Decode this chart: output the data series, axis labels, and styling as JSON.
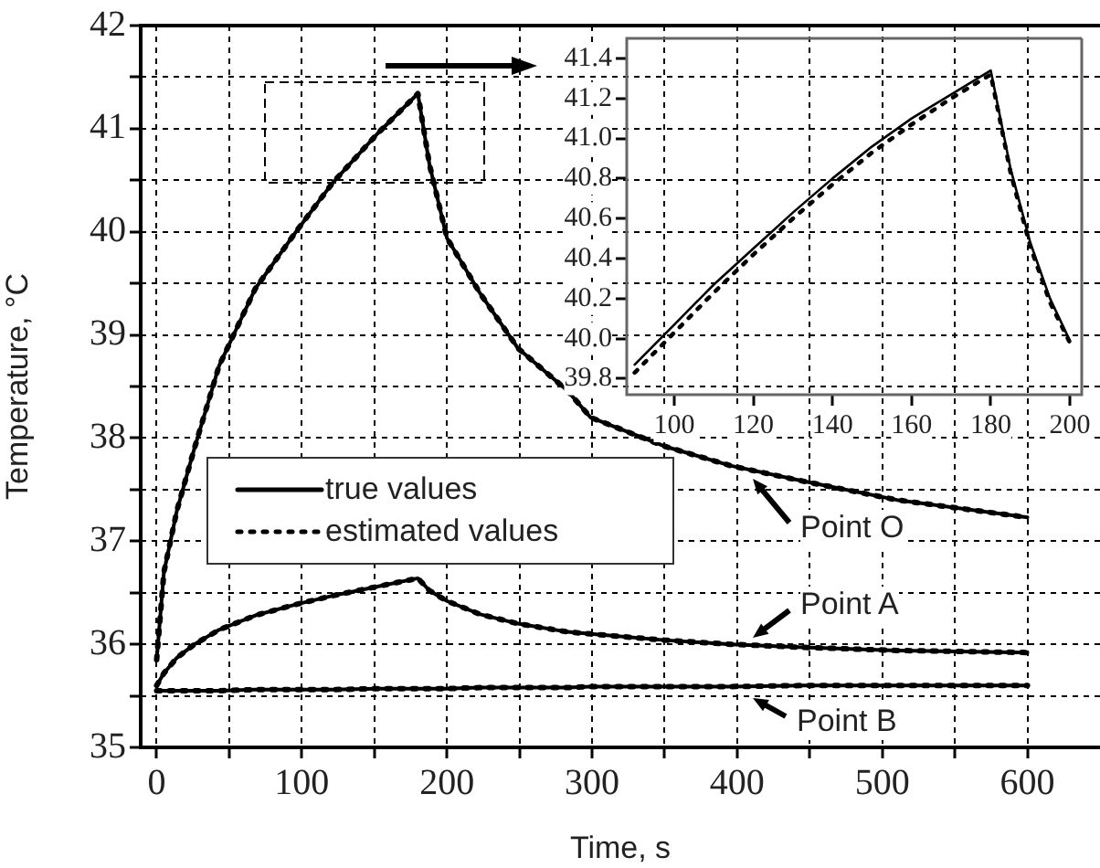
{
  "chart_data": [
    {
      "type": "line",
      "xlabel": "Time, s",
      "ylabel": "Temperature, °C",
      "xlim": [
        -11,
        650
      ],
      "ylim": [
        35,
        42
      ],
      "xticks": [
        0,
        {
          "value": 50,
          "label": null
        },
        100,
        {
          "value": 150,
          "label": null
        },
        200,
        {
          "value": 250,
          "label": null
        },
        300,
        {
          "value": 350,
          "label": null
        },
        400,
        {
          "value": 450,
          "label": null
        },
        500,
        {
          "value": 550,
          "label": null
        },
        600
      ],
      "yticks": [
        35,
        {
          "value": 35.5,
          "label": null
        },
        36,
        {
          "value": 36.5,
          "label": null
        },
        37,
        {
          "value": 37.5,
          "label": null
        },
        38,
        {
          "value": 38.5,
          "label": null
        },
        39,
        {
          "value": 39.5,
          "label": null
        },
        40,
        {
          "value": 40.5,
          "label": null
        },
        41,
        {
          "value": 41.5,
          "label": null
        },
        42
      ],
      "grid": true,
      "legend": "bottom left",
      "marker": "none",
      "x": [
        0,
        5,
        14,
        26,
        43,
        68,
        97,
        121,
        152,
        180,
        188,
        200,
        223,
        249,
        283,
        299,
        350,
        396,
        446,
        510,
        600
      ],
      "series": [
        {
          "name": "true values",
          "color": "#000000",
          "line_style": "solid",
          "values": [
            35.85,
            36.7,
            37.3,
            37.9,
            38.7,
            39.45,
            40.02,
            40.47,
            40.95,
            41.34,
            40.65,
            39.94,
            39.4,
            38.87,
            38.46,
            38.2,
            37.92,
            37.73,
            37.58,
            37.4,
            37.23
          ]
        },
        {
          "name": "estimated values",
          "color": "#000000",
          "line_style": "dotted",
          "values": [
            35.85,
            36.7,
            37.3,
            37.9,
            38.7,
            39.45,
            40.02,
            40.47,
            40.95,
            41.34,
            40.65,
            39.94,
            39.4,
            38.87,
            38.46,
            38.2,
            37.92,
            37.73,
            37.58,
            37.4,
            37.23
          ]
        },
        {
          "color": "#000000",
          "line_style": "solid",
          "values": [
            35.6,
            35.72,
            35.87,
            36.0,
            36.14,
            36.28,
            36.39,
            36.47,
            36.56,
            36.64,
            36.52,
            36.42,
            36.29,
            36.2,
            36.12,
            36.1,
            36.04,
            36.0,
            35.97,
            35.94,
            35.92
          ]
        },
        {
          "color": "#000000",
          "line_style": "dotted",
          "values": [
            35.6,
            35.72,
            35.87,
            36.0,
            36.14,
            36.28,
            36.39,
            36.47,
            36.56,
            36.64,
            36.52,
            36.42,
            36.29,
            36.2,
            36.12,
            36.1,
            36.04,
            36.0,
            35.97,
            35.94,
            35.92
          ]
        },
        {
          "color": "#000000",
          "line_style": "solid",
          "values": [
            35.55,
            35.55,
            35.55,
            35.55,
            35.55,
            35.56,
            35.56,
            35.56,
            35.57,
            35.57,
            35.57,
            35.57,
            35.58,
            35.58,
            35.58,
            35.59,
            35.59,
            35.59,
            35.6,
            35.6,
            35.6
          ]
        },
        {
          "color": "#000000",
          "line_style": "dotted",
          "values": [
            35.55,
            35.55,
            35.55,
            35.55,
            35.55,
            35.56,
            35.56,
            35.56,
            35.57,
            35.57,
            35.57,
            35.57,
            35.58,
            35.58,
            35.58,
            35.59,
            35.59,
            35.59,
            35.6,
            35.6,
            35.6
          ]
        }
      ],
      "annotations": [
        "Point O",
        "Point A",
        "Point B"
      ]
    },
    {
      "type": "line",
      "xlim": [
        88,
        203
      ],
      "ylim": [
        39.72,
        41.5
      ],
      "xticks": [
        100,
        120,
        140,
        160,
        180,
        200
      ],
      "yticks": [
        {
          "value": 39.8,
          "label": "39.8"
        },
        {
          "value": 40.0,
          "label": "40.0"
        },
        {
          "value": 40.2,
          "label": "40.2"
        },
        {
          "value": 40.4,
          "label": "40.4"
        },
        {
          "value": 40.6,
          "label": "40.6"
        },
        {
          "value": 40.8,
          "label": "40.8"
        },
        {
          "value": 41.0,
          "label": "41.0"
        },
        {
          "value": 41.2,
          "label": "41.2"
        },
        {
          "value": 41.4,
          "label": "41.4"
        }
      ],
      "marker": "none",
      "x": [
        90,
        100,
        110,
        120,
        130,
        140,
        150,
        160,
        170,
        180,
        185,
        190,
        195,
        200
      ],
      "series": [
        {
          "color": "#000000",
          "line_style": "solid",
          "values": [
            39.87,
            40.07,
            40.27,
            40.45,
            40.63,
            40.8,
            40.96,
            41.1,
            41.22,
            41.34,
            40.85,
            40.48,
            40.2,
            39.99
          ]
        },
        {
          "color": "#000000",
          "line_style": "dotted",
          "values": [
            39.83,
            40.03,
            40.23,
            40.42,
            40.6,
            40.77,
            40.93,
            41.07,
            41.2,
            41.32,
            40.83,
            40.46,
            40.18,
            39.98
          ]
        }
      ]
    }
  ]
}
